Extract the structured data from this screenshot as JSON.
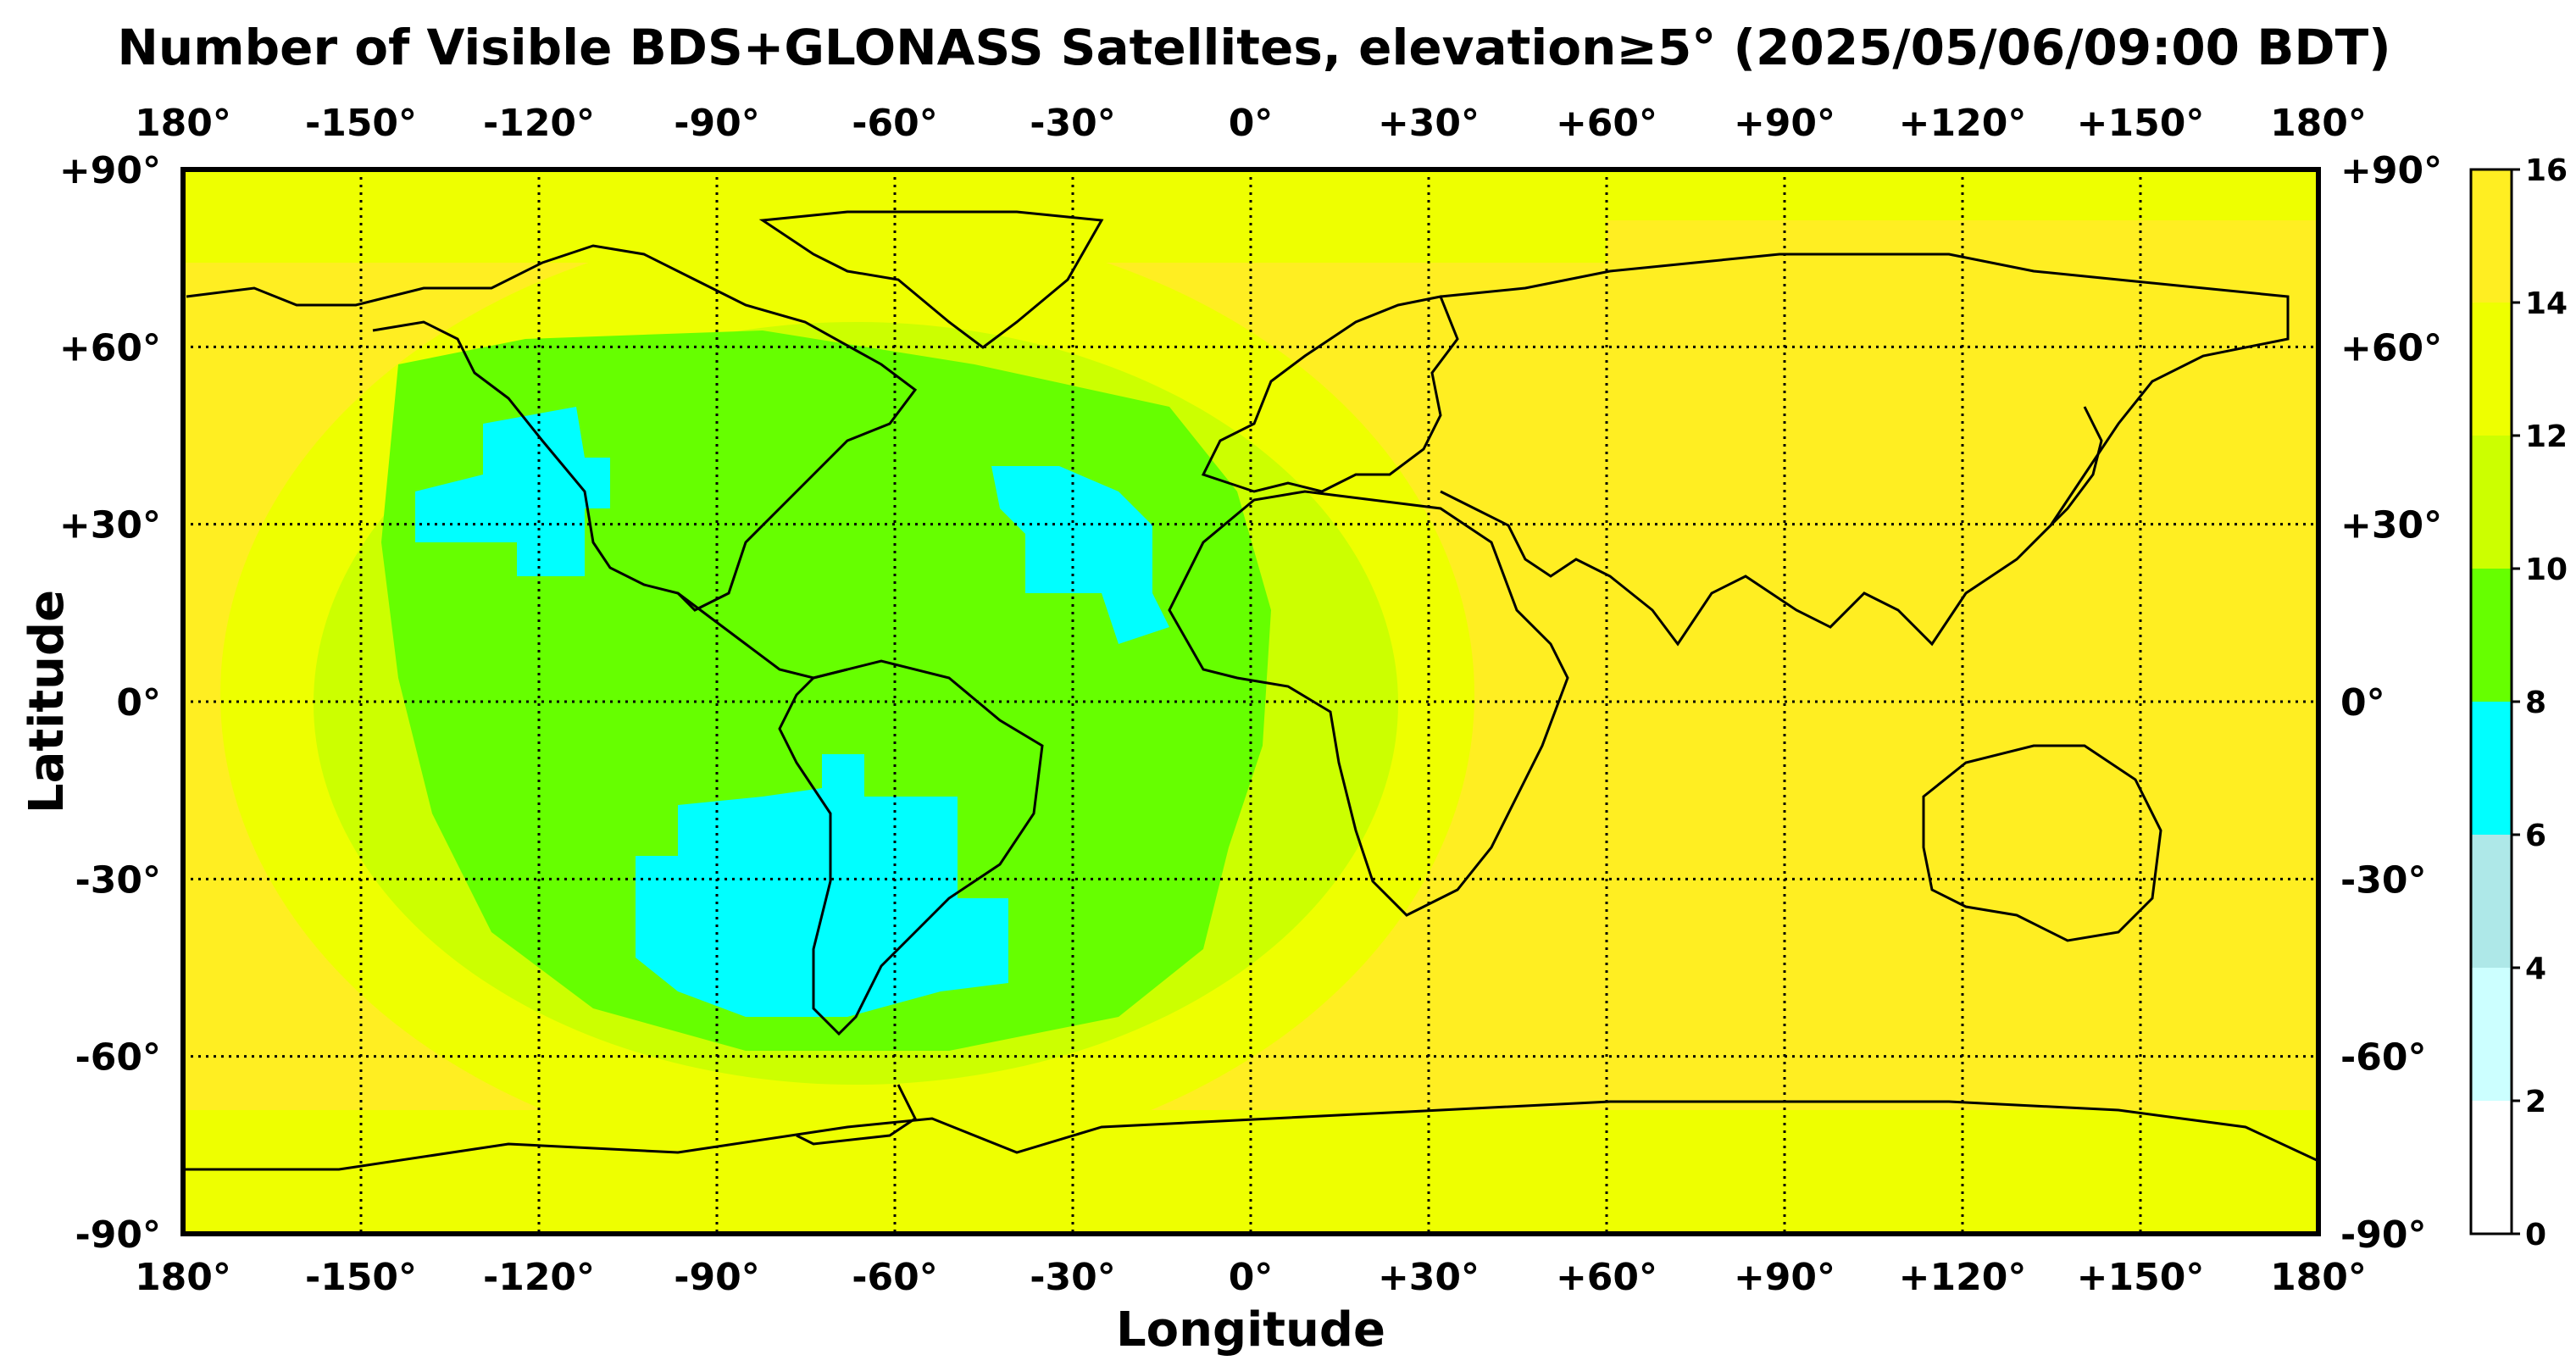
{
  "title": "Number of Visible BDS+GLONASS Satellites, elevation≥5° (2025/05/06/09:00 BDT)",
  "x_axis": {
    "label": "Longitude",
    "ticks": [
      "180°",
      "-150°",
      "-120°",
      "-90°",
      "-60°",
      "-30°",
      "0°",
      "+30°",
      "+60°",
      "+90°",
      "+120°",
      "+150°",
      "180°"
    ],
    "tick_values": [
      -180,
      -150,
      -120,
      -90,
      -60,
      -30,
      0,
      30,
      60,
      90,
      120,
      150,
      180
    ]
  },
  "y_axis": {
    "label": "Latitude",
    "ticks": [
      "+90°",
      "+60°",
      "+30°",
      "0°",
      "-30°",
      "-60°",
      "-90°"
    ],
    "tick_values": [
      90,
      60,
      30,
      0,
      -30,
      -60,
      -90
    ]
  },
  "colorbar": {
    "levels": [
      "0",
      "2",
      "4",
      "6",
      "8",
      "10",
      "12",
      "14",
      "16"
    ],
    "level_values": [
      0,
      2,
      4,
      6,
      8,
      10,
      12,
      14,
      16
    ],
    "colors": [
      "#ffffff",
      "#ccffff",
      "#aee8e8",
      "#00ffff",
      "#66ff00",
      "#ccff00",
      "#eeff00",
      "#ffee22"
    ]
  },
  "regions": {
    "background_level_color": "#ffee22",
    "polar_band_color": "#eeff00",
    "outer_ring_color": "#ccff00",
    "main_low_region_color": "#66ff00",
    "minimum_region_color": "#00ffff",
    "low_visibility_center": {
      "lon": -65,
      "lat": -20
    }
  },
  "grid": {
    "style": "dotted",
    "visible": true
  }
}
